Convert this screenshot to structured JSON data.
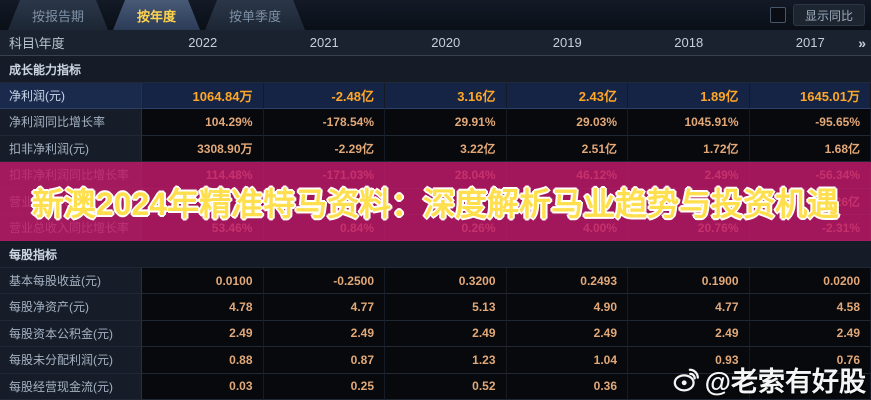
{
  "tabs": [
    {
      "label": "按报告期",
      "active": false
    },
    {
      "label": "按年度",
      "active": true
    },
    {
      "label": "按单季度",
      "active": false
    }
  ],
  "controls": {
    "show_yoy_label": "显示同比",
    "checkbox_checked": false
  },
  "table": {
    "corner_label": "科目\\年度",
    "years": [
      "2022",
      "2021",
      "2020",
      "2019",
      "2018",
      "2017"
    ],
    "more_icon": "»",
    "rows": [
      {
        "type": "section",
        "label": "成长能力指标"
      },
      {
        "type": "data",
        "label": "净利润(元)",
        "highlight": true,
        "values": [
          "1064.84万",
          "-2.48亿",
          "3.16亿",
          "2.43亿",
          "1.89亿",
          "1645.01万"
        ]
      },
      {
        "type": "data",
        "label": "净利润同比增长率",
        "values": [
          "104.29%",
          "-178.54%",
          "29.91%",
          "29.03%",
          "1045.91%",
          "-95.65%"
        ]
      },
      {
        "type": "data",
        "label": "扣非净利润(元)",
        "values": [
          "3308.90万",
          "-2.29亿",
          "3.22亿",
          "2.51亿",
          "1.72亿",
          "1.68亿"
        ]
      },
      {
        "type": "data",
        "label": "扣非净利润同比增长率",
        "values": [
          "114.48%",
          "-171.03%",
          "28.04%",
          "46.12%",
          "2.49%",
          "-56.34%"
        ]
      },
      {
        "type": "data",
        "label": "营业总收入(元)",
        "values": [
          "",
          "",
          "",
          "",
          "",
          "21.26亿"
        ]
      },
      {
        "type": "data",
        "label": "营业总收入同比增长率",
        "values": [
          "53.46%",
          "0.84%",
          "0.26%",
          "4.00%",
          "20.76%",
          "-2.31%"
        ]
      },
      {
        "type": "section",
        "label": "每股指标"
      },
      {
        "type": "data",
        "label": "基本每股收益(元)",
        "values": [
          "0.0100",
          "-0.2500",
          "0.3200",
          "0.2493",
          "0.1900",
          "0.0200"
        ]
      },
      {
        "type": "data",
        "label": "每股净资产(元)",
        "values": [
          "4.78",
          "4.77",
          "5.13",
          "4.90",
          "4.77",
          "4.58"
        ]
      },
      {
        "type": "data",
        "label": "每股资本公积金(元)",
        "values": [
          "2.49",
          "2.49",
          "2.49",
          "2.49",
          "2.49",
          "2.49"
        ]
      },
      {
        "type": "data",
        "label": "每股未分配利润(元)",
        "values": [
          "0.88",
          "0.87",
          "1.23",
          "1.04",
          "0.93",
          "0.76"
        ]
      },
      {
        "type": "data",
        "label": "每股经营现金流(元)",
        "values": [
          "0.03",
          "0.25",
          "0.52",
          "0.36",
          "",
          ""
        ]
      }
    ]
  },
  "overlay": {
    "text": "新澳2024年精准特马资料：深度解析马业趋势与投资机遇"
  },
  "watermark": {
    "text": "@老索有好股"
  },
  "colors": {
    "tab_active_text": "#ffd34d",
    "value_text": "#e2a878",
    "highlight_value": "#ffa726",
    "banner_bg": "#c01a6a",
    "banner_text": "#ffdf4d",
    "watermark_text": "#ffffff"
  }
}
